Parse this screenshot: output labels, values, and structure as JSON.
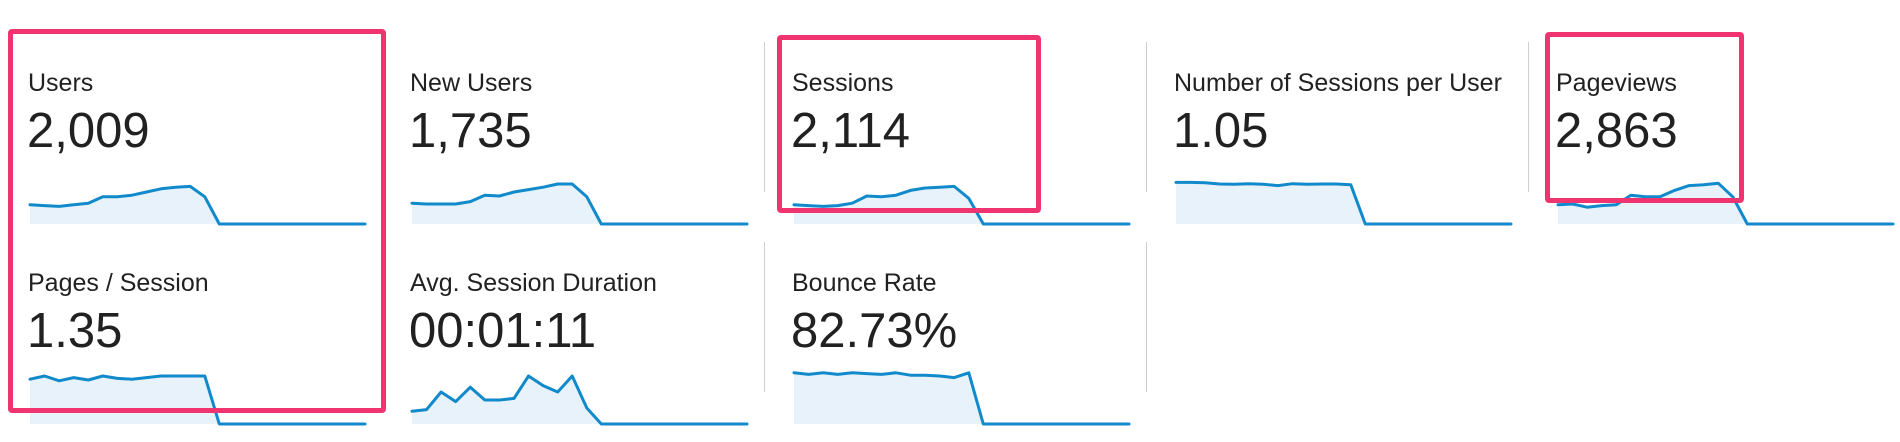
{
  "colors": {
    "sparkline_stroke": "#118acb",
    "sparkline_fill": "#e8f2fa",
    "highlight_border": "#f0346f",
    "divider": "#cfcfcf",
    "text": "#212121"
  },
  "metrics": [
    {
      "label": "Users",
      "value": "2,009",
      "sparkline": [
        12,
        11.5,
        11,
        12,
        13,
        17,
        17,
        18,
        20,
        22,
        23,
        23.5,
        17,
        0,
        0,
        0,
        0,
        0,
        0,
        0,
        0,
        0,
        0,
        0
      ]
    },
    {
      "label": "New Users",
      "value": "1,735",
      "sparkline": [
        13,
        12.5,
        12.5,
        12.5,
        14,
        18,
        17.5,
        20,
        21.5,
        23,
        25,
        25,
        17,
        0,
        0,
        0,
        0,
        0,
        0,
        0,
        0,
        0,
        0,
        0
      ]
    },
    {
      "label": "Sessions",
      "value": "2,114",
      "sparkline": [
        12,
        11.5,
        11,
        11.5,
        13,
        17.5,
        17,
        18,
        21,
        22.5,
        23,
        23.5,
        16,
        0,
        0,
        0,
        0,
        0,
        0,
        0,
        0,
        0,
        0,
        0
      ]
    },
    {
      "label": "Number of Sessions per User",
      "value": "1.05",
      "sparkline": [
        26,
        26,
        25.8,
        25,
        24.8,
        25.2,
        24.8,
        24,
        25.2,
        24.8,
        25,
        25,
        24.5,
        0,
        0,
        0,
        0,
        0,
        0,
        0,
        0,
        0,
        0,
        0
      ]
    },
    {
      "label": "Pageviews",
      "value": "2,863",
      "sparkline": [
        12,
        12.5,
        10.5,
        11.5,
        12,
        18,
        17,
        17,
        21,
        24,
        24.5,
        25.5,
        17,
        0,
        0,
        0,
        0,
        0,
        0,
        0,
        0,
        0,
        0,
        0
      ]
    },
    {
      "label": "Pages / Session",
      "value": "1.35",
      "sparkline": [
        28,
        30,
        27,
        29,
        27.5,
        30,
        28.5,
        28,
        29,
        30,
        30,
        30,
        30,
        0,
        0,
        0,
        0,
        0,
        0,
        0,
        0,
        0,
        0,
        0
      ]
    },
    {
      "label": "Avg. Session Duration",
      "value": "00:01:11",
      "sparkline": [
        8,
        9,
        20,
        14,
        23,
        15,
        15,
        16,
        30,
        24,
        20,
        30,
        10,
        0,
        0,
        0,
        0,
        0,
        0,
        0,
        0,
        0,
        0,
        0
      ]
    },
    {
      "label": "Bounce Rate",
      "value": "82.73%",
      "sparkline": [
        32,
        31,
        32,
        31,
        32,
        31.5,
        31,
        32,
        30.5,
        30.5,
        30,
        29,
        32,
        0,
        0,
        0,
        0,
        0,
        0,
        0,
        0,
        0,
        0,
        0
      ]
    }
  ]
}
